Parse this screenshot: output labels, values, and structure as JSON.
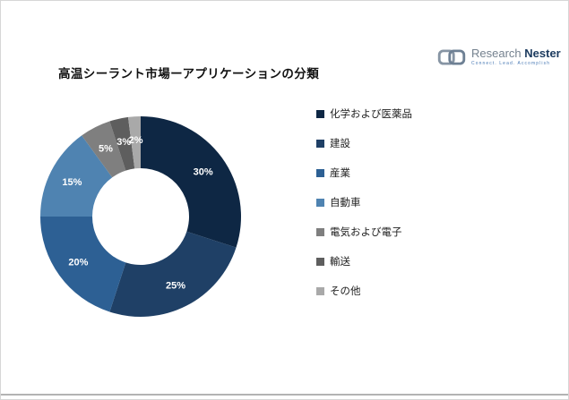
{
  "page": {
    "title": "高温シーラント市場ーアプリケーションの分類"
  },
  "logo": {
    "brand_primary": "Research",
    "brand_secondary": "Nester",
    "tagline": "Connect. Lead. Accomplish"
  },
  "chart_data": {
    "type": "pie",
    "donut": true,
    "title": "高温シーラント市場ーアプリケーションの分類",
    "categories": [
      "化学および医薬品",
      "建設",
      "産業",
      "自動車",
      "電気および電子",
      "輸送",
      "その他"
    ],
    "values": [
      30,
      25,
      20,
      15,
      5,
      3,
      2
    ],
    "labels": [
      "30%",
      "25%",
      "20%",
      "15%",
      "5%",
      "3%",
      "2%"
    ],
    "colors": [
      "#0e2744",
      "#1f4066",
      "#2d6094",
      "#4f83b1",
      "#7f7f7f",
      "#5e5e5e",
      "#a9a9a9"
    ],
    "legend_position": "right",
    "start_angle_deg": 0,
    "direction": "clockwise",
    "inner_radius_ratio": 0.48
  }
}
